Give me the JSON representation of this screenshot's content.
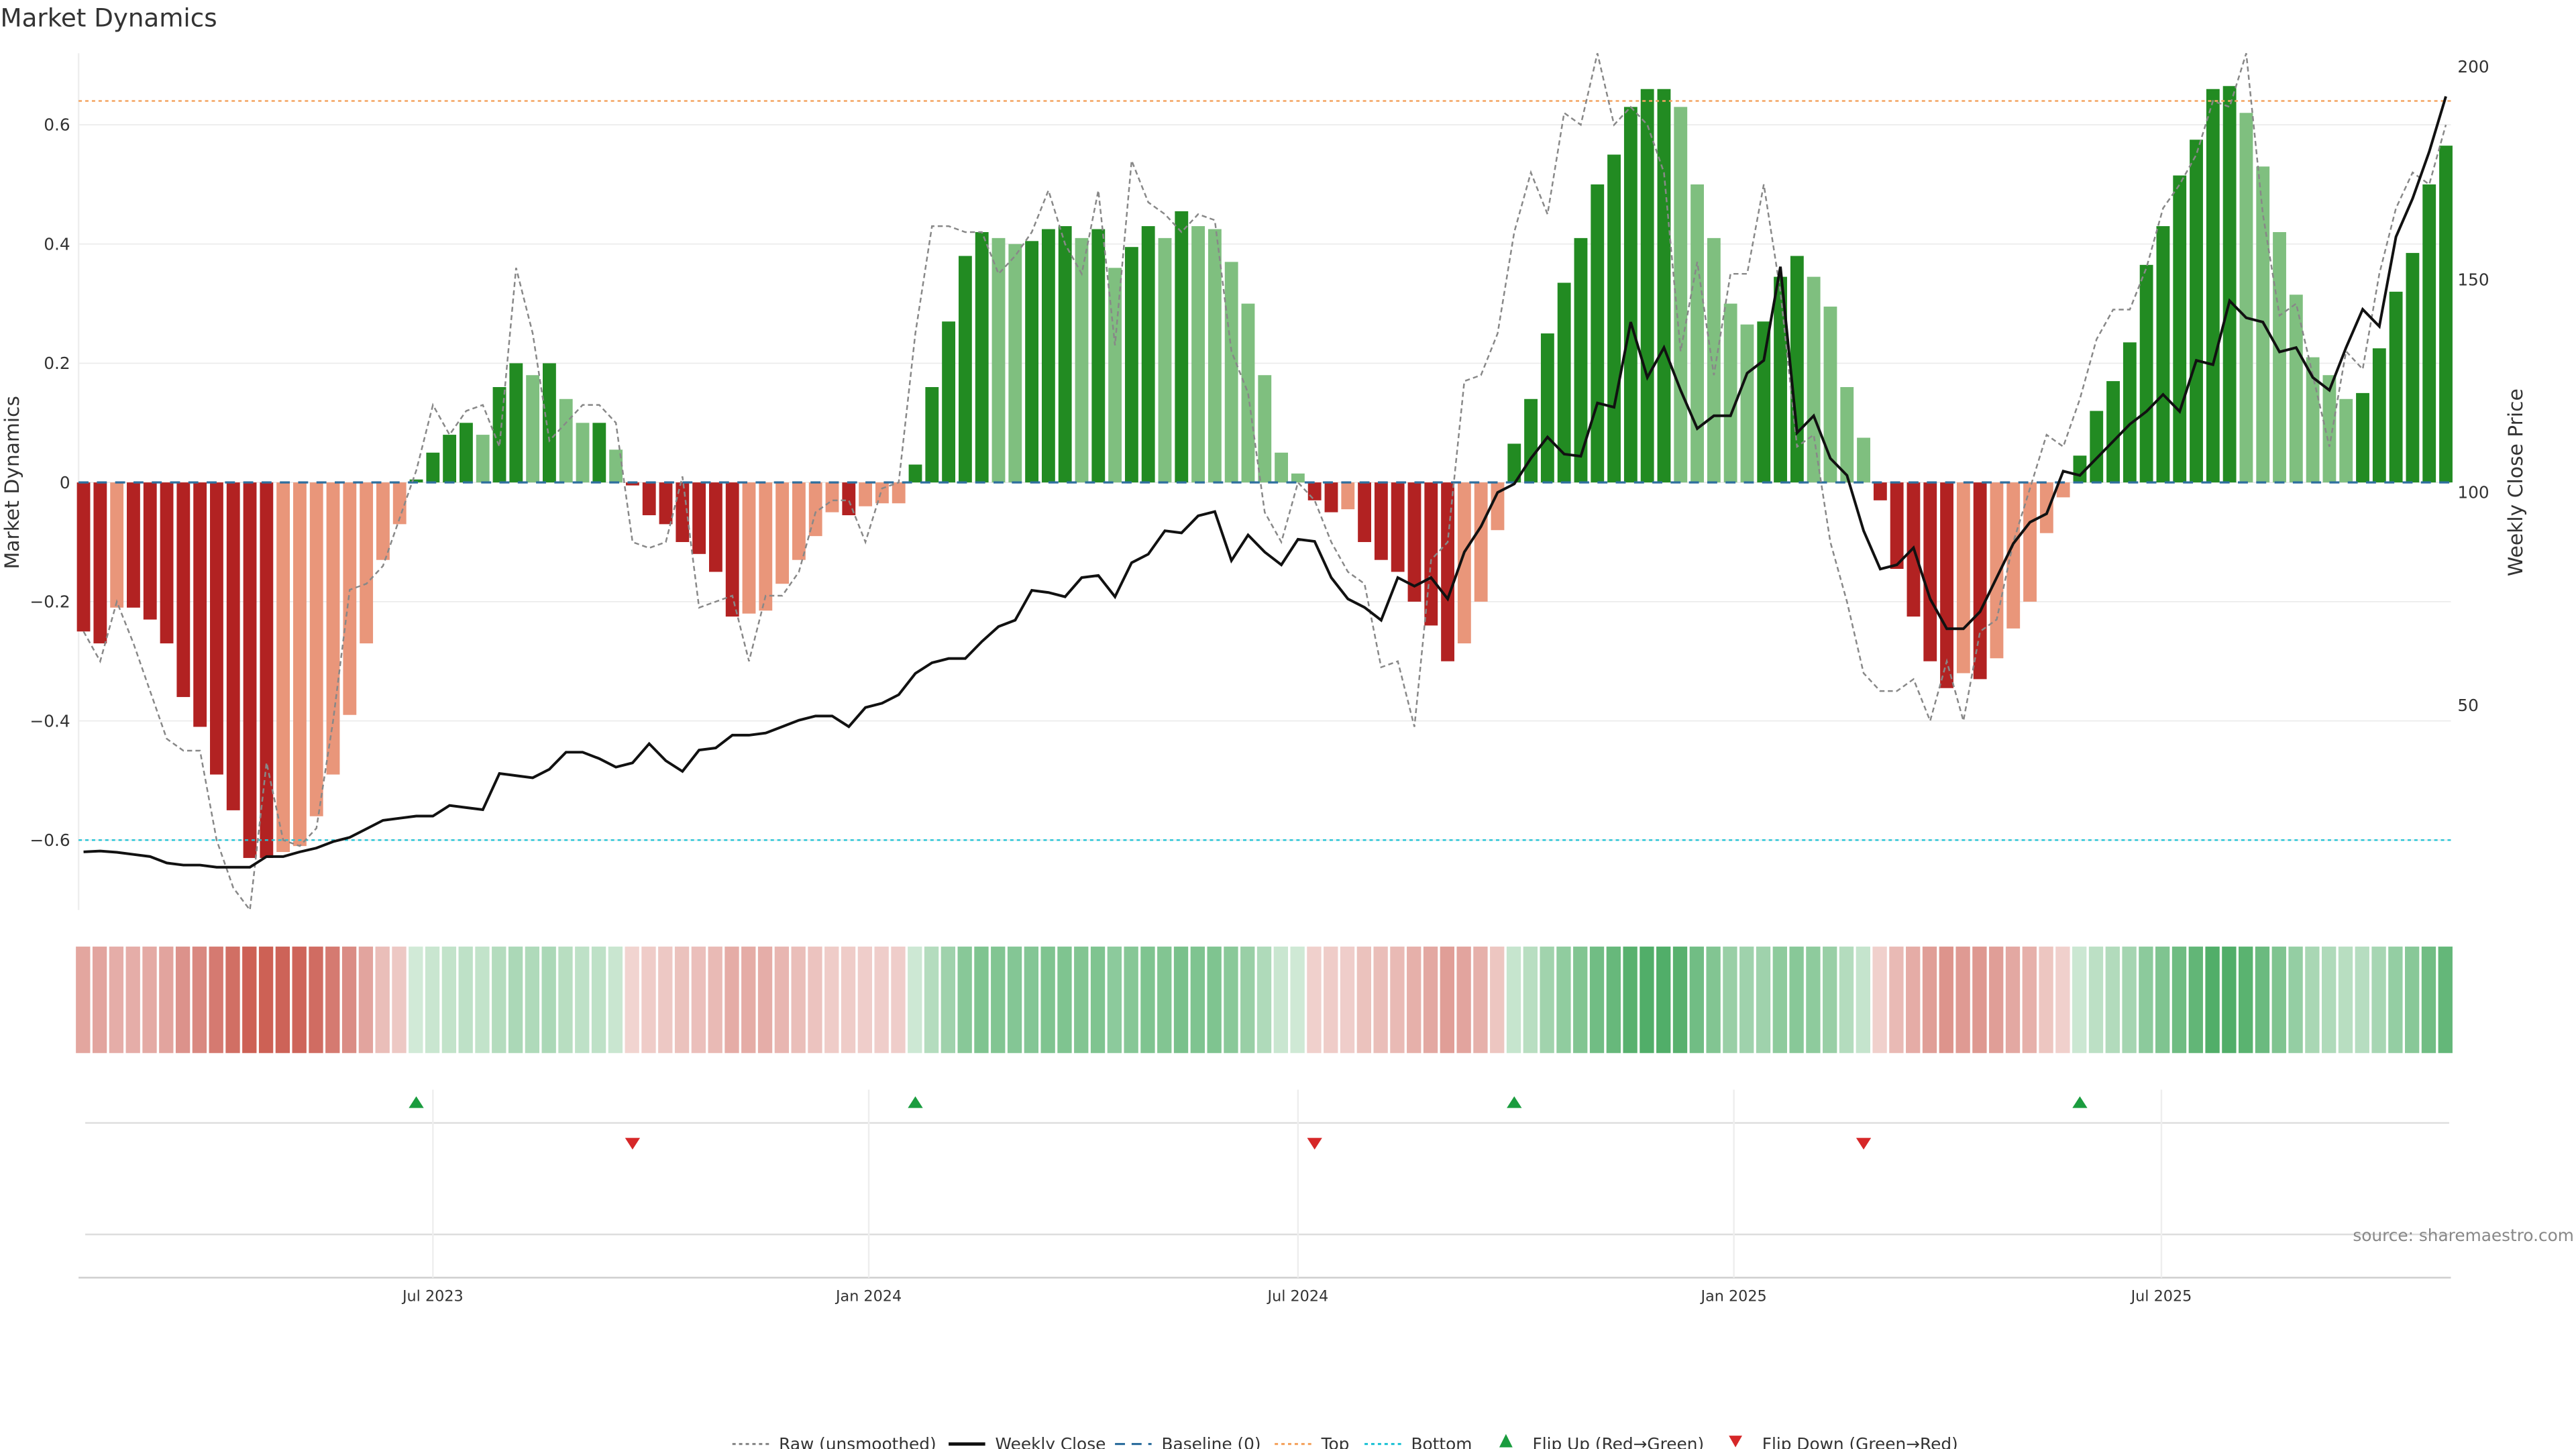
{
  "chart_data": {
    "type": "bar",
    "title": "Market Dynamics",
    "ylabel": "Market Dynamics",
    "ylabel_right": "Weekly Close Price",
    "ylim": [
      -0.72,
      0.72
    ],
    "ylim_right": [
      2,
      203
    ],
    "yticks": [
      "0.6",
      "0.4",
      "0.2",
      "0",
      "−0.2",
      "−0.4",
      "−0.6"
    ],
    "ytick_values": [
      0.6,
      0.4,
      0.2,
      0,
      -0.2,
      -0.4,
      -0.6
    ],
    "yticks_right": [
      "200",
      "150",
      "100",
      "50"
    ],
    "ytick_right_values": [
      200,
      150,
      100,
      50
    ],
    "xticks": [
      {
        "label": "Jul 2023",
        "week": 21
      },
      {
        "label": "Jan 2024",
        "week": 47.2
      },
      {
        "label": "Jul 2024",
        "week": 73
      },
      {
        "label": "Jan 2025",
        "week": 99.2
      },
      {
        "label": "Jul 2025",
        "week": 124.9
      }
    ],
    "top_level": 0.64,
    "bottom_level": -0.6,
    "baseline": 0,
    "market_dynamics": [
      -0.25,
      -0.27,
      -0.21,
      -0.21,
      -0.23,
      -0.27,
      -0.36,
      -0.41,
      -0.49,
      -0.55,
      -0.63,
      -0.63,
      -0.62,
      -0.61,
      -0.56,
      -0.49,
      -0.39,
      -0.27,
      -0.13,
      -0.07,
      0.005,
      0.05,
      0.08,
      0.1,
      0.08,
      0.16,
      0.2,
      0.18,
      0.2,
      0.14,
      0.1,
      0.1,
      0.055,
      -0.005,
      -0.055,
      -0.07,
      -0.1,
      -0.12,
      -0.15,
      -0.225,
      -0.22,
      -0.215,
      -0.17,
      -0.13,
      -0.09,
      -0.05,
      -0.055,
      -0.04,
      -0.035,
      -0.035,
      0.03,
      0.16,
      0.27,
      0.38,
      0.42,
      0.41,
      0.4,
      0.405,
      0.425,
      0.43,
      0.41,
      0.425,
      0.36,
      0.395,
      0.43,
      0.41,
      0.455,
      0.43,
      0.425,
      0.37,
      0.3,
      0.18,
      0.05,
      0.015,
      -0.03,
      -0.05,
      -0.045,
      -0.1,
      -0.13,
      -0.15,
      -0.2,
      -0.24,
      -0.3,
      -0.27,
      -0.2,
      -0.08,
      0.065,
      0.14,
      0.25,
      0.335,
      0.41,
      0.5,
      0.55,
      0.63,
      0.66,
      0.66,
      0.63,
      0.5,
      0.41,
      0.3,
      0.265,
      0.27,
      0.345,
      0.38,
      0.345,
      0.295,
      0.16,
      0.075,
      -0.03,
      -0.145,
      -0.225,
      -0.3,
      -0.345,
      -0.32,
      -0.33,
      -0.295,
      -0.245,
      -0.2,
      -0.085,
      -0.025,
      0.045,
      0.12,
      0.17,
      0.235,
      0.365,
      0.43,
      0.515,
      0.575,
      0.66,
      0.665,
      0.62,
      0.53,
      0.42,
      0.315,
      0.21,
      0.18,
      0.14,
      0.15,
      0.225,
      0.32,
      0.385,
      0.5,
      0.565
    ],
    "shade": "SSWSSSSSSSSSWWWWWWWWSSSSWSSWSWWSWSSSSSSSWWWWWWSWWWSSSSSWWSSSWSWSSWSWWWWWWWSSWSSSSSSWWWSSSSSSSSSSWWWWWSSSWWWWSSSSSWSWWWWWSSSSSSSSSSWWWWWWWSSSSSS",
    "raw": [
      -0.25,
      -0.3,
      -0.2,
      -0.27,
      -0.35,
      -0.43,
      -0.45,
      -0.45,
      -0.6,
      -0.68,
      -0.75,
      -0.47,
      -0.6,
      -0.61,
      -0.58,
      -0.4,
      -0.18,
      -0.17,
      -0.14,
      -0.06,
      0.02,
      0.13,
      0.08,
      0.12,
      0.13,
      0.06,
      0.36,
      0.25,
      0.07,
      0.1,
      0.13,
      0.13,
      0.1,
      -0.1,
      -0.11,
      -0.1,
      0.01,
      -0.21,
      -0.2,
      -0.19,
      -0.3,
      -0.19,
      -0.19,
      -0.15,
      -0.05,
      -0.03,
      -0.03,
      -0.1,
      -0.01,
      0.0,
      0.25,
      0.43,
      0.43,
      0.42,
      0.42,
      0.35,
      0.38,
      0.42,
      0.49,
      0.4,
      0.35,
      0.49,
      0.23,
      0.54,
      0.47,
      0.45,
      0.42,
      0.45,
      0.44,
      0.22,
      0.15,
      -0.05,
      -0.1,
      0.0,
      -0.03,
      -0.1,
      -0.15,
      -0.17,
      -0.31,
      -0.3,
      -0.41,
      -0.13,
      -0.1,
      0.17,
      0.18,
      0.25,
      0.42,
      0.52,
      0.45,
      0.62,
      0.6,
      0.72,
      0.6,
      0.63,
      0.6,
      0.52,
      0.22,
      0.37,
      0.18,
      0.35,
      0.35,
      0.5,
      0.32,
      0.06,
      0.08,
      -0.1,
      -0.2,
      -0.32,
      -0.35,
      -0.35,
      -0.33,
      -0.4,
      -0.3,
      -0.4,
      -0.25,
      -0.23,
      -0.1,
      -0.01,
      0.08,
      0.06,
      0.14,
      0.24,
      0.29,
      0.29,
      0.36,
      0.46,
      0.5,
      0.55,
      0.64,
      0.63,
      0.72,
      0.45,
      0.28,
      0.3,
      0.18,
      0.06,
      0.22,
      0.19,
      0.35,
      0.46,
      0.52,
      0.5,
      0.6
    ],
    "weekly_close": [
      15.6,
      15.8,
      15.5,
      15,
      14.5,
      13,
      12.5,
      12.5,
      12,
      12,
      12,
      14.5,
      14.5,
      15.6,
      16.5,
      18,
      19,
      21,
      23,
      23.5,
      24,
      24,
      26.5,
      26,
      25.5,
      34,
      33.5,
      33,
      35,
      39,
      39,
      37.5,
      35.5,
      36.5,
      41,
      37,
      34.5,
      39.5,
      40,
      43,
      43,
      43.5,
      45,
      46.5,
      47.5,
      47.5,
      45,
      49.5,
      50.5,
      52.5,
      57.5,
      60,
      61,
      61,
      65,
      68.5,
      70,
      77,
      76.5,
      75.5,
      80,
      80.5,
      75.5,
      83.5,
      85.5,
      91,
      90.5,
      94.5,
      95.5,
      84,
      90,
      86,
      83,
      89,
      88.5,
      80,
      75,
      73,
      70,
      80,
      78,
      80,
      75,
      86,
      92,
      100,
      102,
      108,
      113,
      109,
      108.5,
      121,
      120,
      140,
      127,
      134,
      124,
      115,
      118,
      118,
      128,
      131,
      153,
      114,
      118,
      108,
      104,
      91,
      82,
      83,
      87,
      75,
      68,
      68,
      72,
      80,
      88,
      93,
      95,
      105,
      104,
      108,
      112,
      116,
      119,
      123,
      119,
      131,
      130,
      145,
      141,
      140,
      133,
      134,
      127,
      124,
      134,
      143,
      139,
      160,
      169,
      180,
      193
    ],
    "flip_up_weeks": [
      20,
      50,
      86,
      120
    ],
    "flip_down_weeks": [
      33,
      74,
      107
    ],
    "legend": [
      {
        "label": "Raw (unsmoothed)",
        "style": "dotted",
        "color": "#888888"
      },
      {
        "label": "Weekly Close",
        "style": "solid",
        "color": "#111111"
      },
      {
        "label": "Baseline (0)",
        "style": "dashed",
        "color": "#2e6f9e"
      },
      {
        "label": "Top",
        "style": "dotted",
        "color": "#f4a460"
      },
      {
        "label": "Bottom",
        "style": "dotted",
        "color": "#22c3d6"
      },
      {
        "label": "Flip Up (Red→Green)",
        "style": "triangle-up",
        "color": "#1a9c3e"
      },
      {
        "label": "Flip Down (Green→Red)",
        "style": "triangle-down",
        "color": "#d62728"
      }
    ],
    "legend_position": "bottom-center",
    "colors": {
      "strong_pos": "#228b22",
      "weak_pos": "#7fbf7f",
      "strong_neg": "#b22222",
      "weak_neg": "#e9967a"
    }
  },
  "source": "source: sharemaestro.com"
}
